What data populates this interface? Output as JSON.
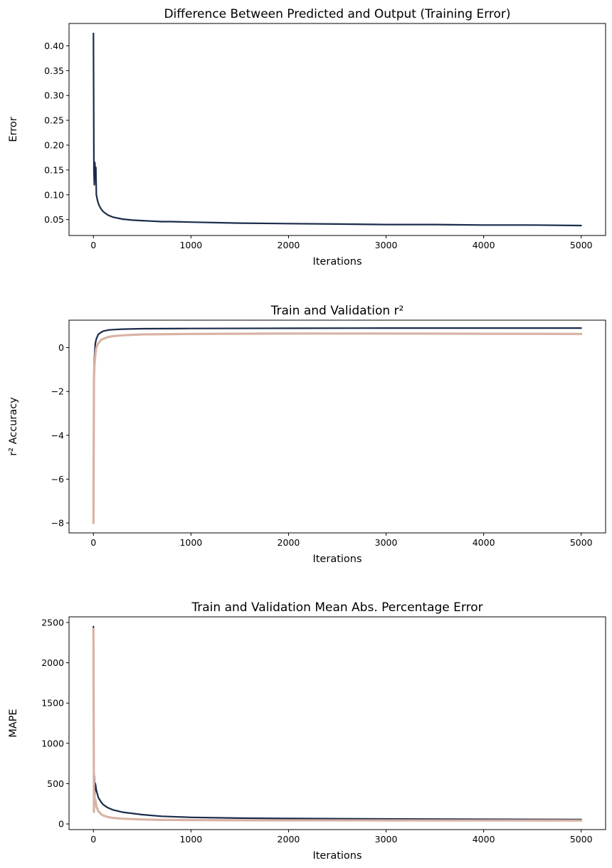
{
  "colors": {
    "train": "#1a2b4a",
    "validation": "#d9b3a5"
  },
  "chart_data": [
    {
      "type": "line",
      "title": "Difference Between Predicted and Output (Training Error)",
      "xlabel": "Iterations",
      "ylabel": "Error",
      "xlim": [
        -250,
        5250
      ],
      "ylim": [
        0.018,
        0.445
      ],
      "xticks": [
        0,
        1000,
        2000,
        3000,
        4000,
        5000
      ],
      "xtick_labels": [
        "0",
        "1000",
        "2000",
        "3000",
        "4000",
        "5000"
      ],
      "yticks": [
        0.05,
        0.1,
        0.15,
        0.2,
        0.25,
        0.3,
        0.35,
        0.4
      ],
      "ytick_labels": [
        "0.05",
        "0.10",
        "0.15",
        "0.20",
        "0.25",
        "0.30",
        "0.35",
        "0.40"
      ],
      "grid": false,
      "series": [
        {
          "color_key": "train",
          "x": [
            0,
            5,
            10,
            15,
            20,
            25,
            30,
            40,
            50,
            60,
            80,
            100,
            150,
            200,
            300,
            400,
            500,
            600,
            700,
            800,
            1000,
            1500,
            2000,
            2500,
            3000,
            3500,
            4000,
            4500,
            5000
          ],
          "values": [
            0.425,
            0.145,
            0.12,
            0.165,
            0.14,
            0.155,
            0.1,
            0.09,
            0.083,
            0.078,
            0.071,
            0.066,
            0.059,
            0.055,
            0.051,
            0.049,
            0.048,
            0.047,
            0.046,
            0.046,
            0.045,
            0.043,
            0.042,
            0.041,
            0.04,
            0.04,
            0.039,
            0.039,
            0.038
          ]
        }
      ]
    },
    {
      "type": "line",
      "title": "Train and Validation r²",
      "xlabel": "Iterations",
      "ylabel": "r² Accuracy",
      "xlim": [
        -250,
        5250
      ],
      "ylim": [
        -8.45,
        1.25
      ],
      "xticks": [
        0,
        1000,
        2000,
        3000,
        4000,
        5000
      ],
      "xtick_labels": [
        "0",
        "1000",
        "2000",
        "3000",
        "4000",
        "5000"
      ],
      "yticks": [
        0,
        -2,
        -4,
        -6,
        -8
      ],
      "ytick_labels": [
        "0",
        "−2",
        "−4",
        "−6",
        "−8"
      ],
      "grid": false,
      "series": [
        {
          "color_key": "train",
          "x": [
            0,
            5,
            10,
            20,
            30,
            50,
            80,
            100,
            150,
            200,
            300,
            500,
            1000,
            2000,
            3000,
            4000,
            5000
          ],
          "values": [
            -6.9,
            -1.0,
            -0.5,
            0.2,
            0.4,
            0.6,
            0.7,
            0.75,
            0.8,
            0.82,
            0.84,
            0.86,
            0.87,
            0.88,
            0.89,
            0.89,
            0.89
          ]
        },
        {
          "color_key": "validation",
          "x": [
            0,
            5,
            10,
            20,
            30,
            50,
            80,
            100,
            150,
            200,
            300,
            500,
            1000,
            2000,
            3000,
            4000,
            5000
          ],
          "values": [
            -8.0,
            -1.5,
            -0.9,
            -0.3,
            0.0,
            0.2,
            0.35,
            0.4,
            0.48,
            0.52,
            0.56,
            0.6,
            0.62,
            0.64,
            0.64,
            0.63,
            0.62
          ]
        }
      ]
    },
    {
      "type": "line",
      "title": "Train and Validation Mean Abs. Percentage Error",
      "xlabel": "Iterations",
      "ylabel": "MAPE",
      "xlim": [
        -250,
        5250
      ],
      "ylim": [
        -70,
        2570
      ],
      "xticks": [
        0,
        1000,
        2000,
        3000,
        4000,
        5000
      ],
      "xtick_labels": [
        "0",
        "1000",
        "2000",
        "3000",
        "4000",
        "5000"
      ],
      "yticks": [
        0,
        500,
        1000,
        1500,
        2000,
        2500
      ],
      "ytick_labels": [
        "0",
        "500",
        "1000",
        "1500",
        "2000",
        "2500"
      ],
      "grid": false,
      "series": [
        {
          "color_key": "train",
          "x": [
            0,
            5,
            10,
            15,
            20,
            30,
            50,
            80,
            100,
            150,
            200,
            300,
            500,
            700,
            1000,
            1500,
            2000,
            3000,
            4000,
            5000
          ],
          "values": [
            2450,
            150,
            600,
            350,
            500,
            420,
            330,
            270,
            240,
            200,
            175,
            145,
            115,
            95,
            82,
            72,
            68,
            62,
            58,
            55
          ]
        },
        {
          "color_key": "validation",
          "x": [
            0,
            5,
            10,
            15,
            20,
            30,
            50,
            80,
            100,
            150,
            200,
            300,
            500,
            700,
            1000,
            1500,
            2000,
            3000,
            4000,
            5000
          ],
          "values": [
            2420,
            160,
            400,
            250,
            300,
            220,
            160,
            120,
            105,
            85,
            75,
            65,
            55,
            50,
            48,
            46,
            45,
            44,
            43,
            42
          ]
        }
      ]
    }
  ]
}
